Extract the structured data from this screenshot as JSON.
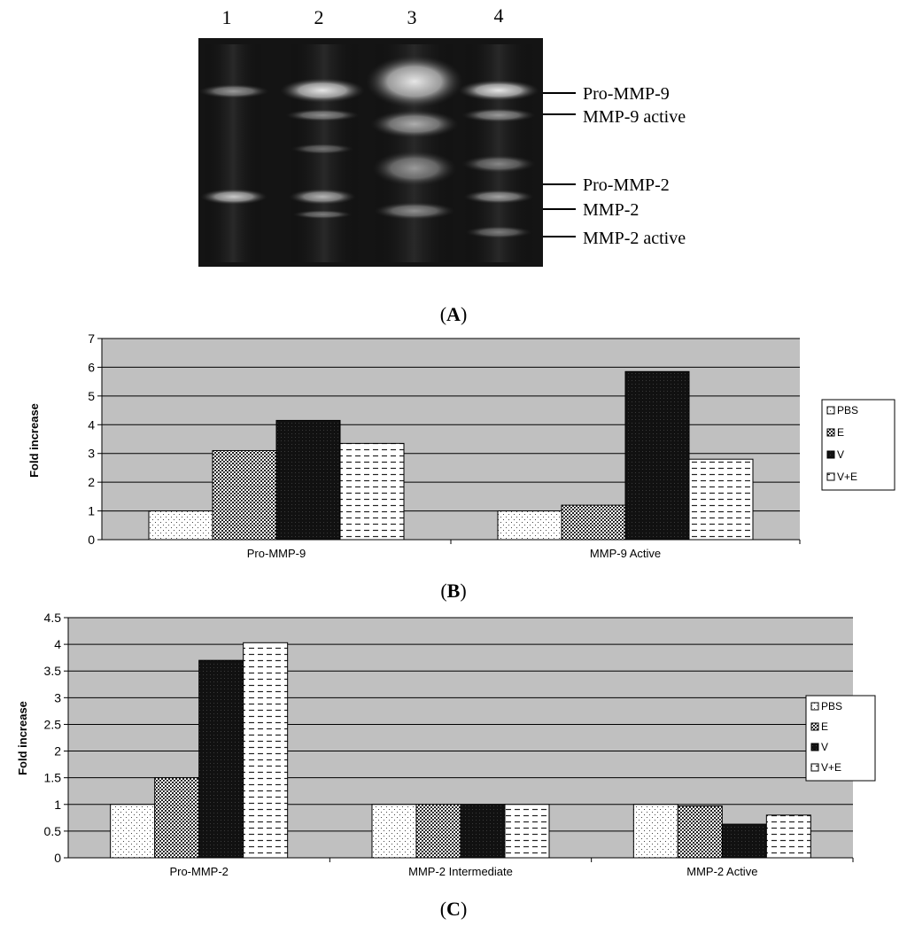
{
  "gel": {
    "lane_labels": [
      "1",
      "2",
      "3",
      "4"
    ],
    "band_labels": [
      "Pro-MMP-9",
      "MMP-9 active",
      "Pro-MMP-2",
      "MMP-2",
      "MMP-2 active"
    ],
    "panel_label": "A"
  },
  "colors": {
    "plot_bg": "#c0c0c0",
    "bar_dark": "#111111",
    "bar_outline": "#000000"
  },
  "chart_data": [
    {
      "type": "bar",
      "panel_label": "B",
      "categories": [
        "Pro-MMP-9",
        "MMP-9 Active"
      ],
      "series": [
        {
          "name": "PBS",
          "values": [
            1.0,
            1.0
          ]
        },
        {
          "name": "E",
          "values": [
            3.1,
            1.2
          ]
        },
        {
          "name": "V",
          "values": [
            4.15,
            5.85
          ]
        },
        {
          "name": "V+E",
          "values": [
            3.35,
            2.8
          ]
        }
      ],
      "ylabel": "Fold increase",
      "ylim": [
        0,
        7
      ],
      "yticks": [
        "0",
        "1",
        "2",
        "3",
        "4",
        "5",
        "6",
        "7"
      ],
      "grid": true,
      "legend": "right"
    },
    {
      "type": "bar",
      "panel_label": "C",
      "categories": [
        "Pro-MMP-2",
        "MMP-2 Intermediate",
        "MMP-2 Active"
      ],
      "series": [
        {
          "name": "PBS",
          "values": [
            1.0,
            1.0,
            1.0
          ]
        },
        {
          "name": "E",
          "values": [
            1.5,
            1.0,
            0.97
          ]
        },
        {
          "name": "V",
          "values": [
            3.7,
            1.0,
            0.63
          ]
        },
        {
          "name": "V+E",
          "values": [
            4.03,
            1.0,
            0.8
          ]
        }
      ],
      "ylabel": "Fold increase",
      "ylim": [
        0,
        4.5
      ],
      "yticks": [
        "0",
        "0.5",
        "1",
        "1.5",
        "2",
        "2.5",
        "3",
        "3.5",
        "4",
        "4.5"
      ],
      "grid": true,
      "legend": "right"
    }
  ]
}
